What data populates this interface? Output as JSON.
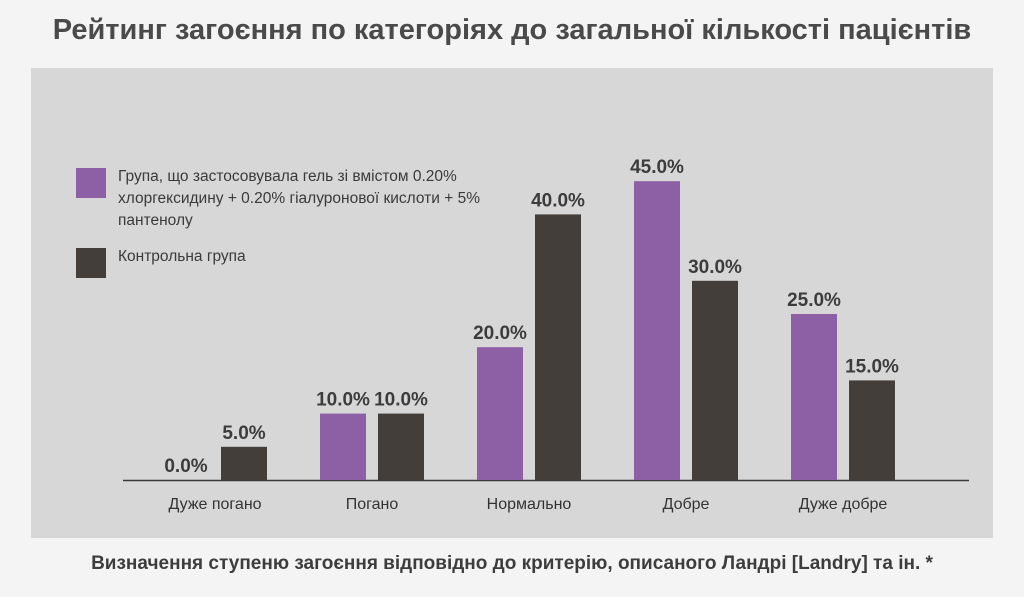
{
  "header": {
    "title": "Рейтинг загоєння по категоріях до загальної кількості пацієнтів"
  },
  "footer": {
    "caption": "Визначення ступеню загоєння відповідно до критерію, описаного Ландрі [Landry] та ін. *"
  },
  "colors": {
    "series1": "#8d5fa4",
    "series2": "#433e39",
    "panel": "#d7d7d8",
    "axis": "#3a3a3a"
  },
  "chart_data": {
    "type": "bar",
    "title": "Рейтинг загоєння по категоріях до загальної кількості пацієнтів",
    "xlabel": "Визначення ступеню загоєння відповідно до критерію, описаного Ландрі [Landry] та ін. *",
    "ylabel": "",
    "ylim": [
      0,
      50
    ],
    "grid": false,
    "legend_position": "top-left",
    "categories": [
      "Дуже погано",
      "Погано",
      "Нормально",
      "Добре",
      "Дуже добре"
    ],
    "series": [
      {
        "name": "Група, що застосовувала гель зі вмістом 0.20% хлоргексидину + 0.20% гіалуронової кислоти + 5% пантенолу",
        "values": [
          0.0,
          10.0,
          20.0,
          45.0,
          25.0
        ],
        "labels": [
          "0.0%",
          "10.0%",
          "20.0%",
          "45.0%",
          "25.0%"
        ]
      },
      {
        "name": "Контрольна група",
        "values": [
          5.0,
          10.0,
          40.0,
          30.0,
          15.0
        ],
        "labels": [
          "5.0%",
          "10.0%",
          "40.0%",
          "30.0%",
          "15.0%"
        ]
      }
    ]
  },
  "legend": {
    "items": [
      {
        "label": "Група, що застосовувала гель зі вмістом 0.20% хлоргексидину + 0.20% гіалуронової кислоти + 5% пантенолу"
      },
      {
        "label": "Контрольна група"
      }
    ]
  }
}
